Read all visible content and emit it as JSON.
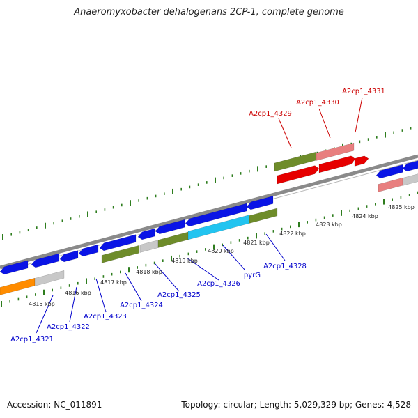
{
  "title": "Anaeromyxobacter dehalogenans 2CP-1, complete genome",
  "footer": {
    "accession": "Accession: NC_011891",
    "topology": "Topology: circular; Length: 5,029,329 bp; Genes: 4,528"
  },
  "colors": {
    "tick": "#2e7d1e",
    "backbone": "#888888",
    "forward_label": "#cc0000",
    "reverse_label": "#0000cc",
    "gene_blue": "#0a14e6",
    "gene_olive": "#6e8c2a",
    "gene_red": "#e60000",
    "gene_pink": "#e87f7f",
    "gene_cyan": "#22c4f0",
    "gene_orange": "#ff8c00",
    "gene_gray": "#c8c8c8"
  },
  "scale_labels": [
    "4815 kbp",
    "4816 kbp",
    "4817 kbp",
    "4818 kbp",
    "4819 kbp",
    "4820 kbp",
    "4821 kbp",
    "4822 kbp",
    "4823 kbp",
    "4824 kbp",
    "4825 kbp"
  ],
  "forward_genes": [
    "A2cp1_4329",
    "A2cp1_4330",
    "A2cp1_4331"
  ],
  "reverse_genes": [
    "A2cp1_4321",
    "A2cp1_4322",
    "A2cp1_4323",
    "A2cp1_4324",
    "A2cp1_4325",
    "A2cp1_4326",
    "pyrG",
    "A2cp1_4328"
  ]
}
